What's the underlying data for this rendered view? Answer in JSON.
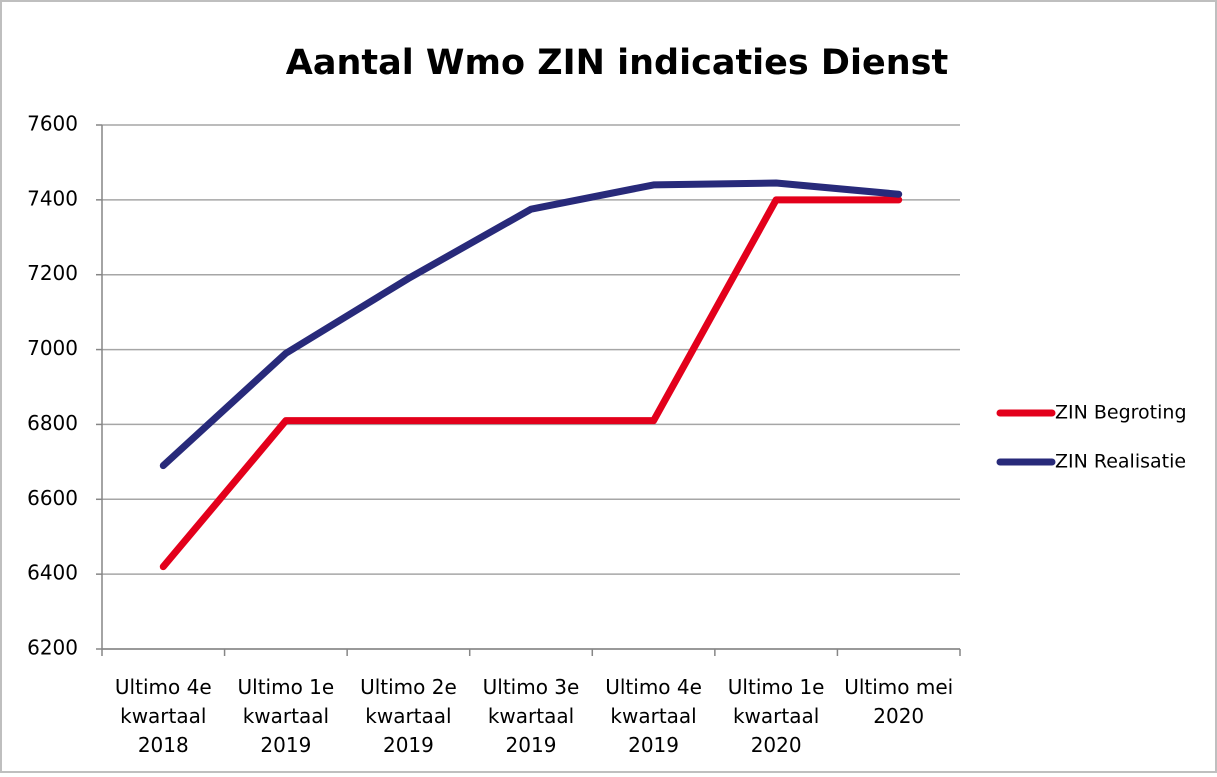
{
  "chart_data": {
    "type": "line",
    "title": "Aantal Wmo ZIN indicaties Dienst",
    "categories": [
      "Ultimo 4e\nkwartaal\n2018",
      "Ultimo 1e\nkwartaal\n2019",
      "Ultimo 2e\nkwartaal\n2019",
      "Ultimo 3e\nkwartaal\n2019",
      "Ultimo 4e\nkwartaal\n2019",
      "Ultimo 1e\nkwartaal\n2020",
      "Ultimo mei\n2020"
    ],
    "series": [
      {
        "name": "ZIN Begroting",
        "color": "#e3001b",
        "values": [
          6420,
          6810,
          6810,
          6810,
          6810,
          7400,
          7400
        ]
      },
      {
        "name": "ZIN Realisatie",
        "color": "#282a7a",
        "values": [
          6690,
          6990,
          7190,
          7375,
          7440,
          7445,
          7415
        ]
      }
    ],
    "ylim": [
      6200,
      7600
    ],
    "yticks": [
      6200,
      6400,
      6600,
      6800,
      7000,
      7200,
      7400,
      7600
    ],
    "grid": true,
    "legend": "right"
  }
}
